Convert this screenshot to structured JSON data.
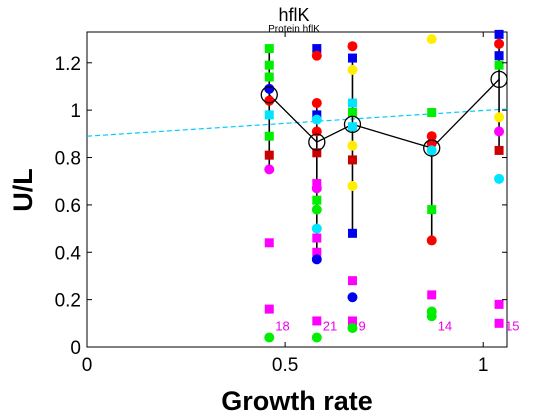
{
  "chart_data": {
    "type": "scatter",
    "title": "hflK",
    "subtitle": "Protein hflK",
    "xlabel": "Growth rate",
    "ylabel": "U/L",
    "xlim": [
      0,
      1.06
    ],
    "ylim": [
      0,
      1.33
    ],
    "xticks": [
      0,
      0.5,
      1
    ],
    "xtick_labels": [
      "0",
      "0.5",
      "1"
    ],
    "yticks": [
      0,
      0.2,
      0.4,
      0.6,
      0.8,
      1,
      1.2
    ],
    "ytick_labels": [
      "0",
      "0.2",
      "0.4",
      "0.6",
      "0.8",
      "1",
      "1.2"
    ],
    "grid": false,
    "colors": {
      "red": "#ff0000",
      "green": "#00ee00",
      "blue": "#0000ee",
      "cyan": "#00e5ff",
      "magenta": "#ff00ff",
      "yellow": "#ffee00",
      "darkred": "#cc0000",
      "fit": "#00ccff",
      "count": "#ee00ee"
    },
    "fit_line": {
      "x": [
        0,
        1.06
      ],
      "y": [
        0.89,
        1.005
      ]
    },
    "mean_series": [
      {
        "x": 0.46,
        "y": 1.065,
        "low": 0.75,
        "high": 1.26,
        "count": "18"
      },
      {
        "x": 0.58,
        "y": 0.865,
        "low": 0.38,
        "high": 1.05,
        "count": "21"
      },
      {
        "x": 0.67,
        "y": 0.94,
        "low": 0.48,
        "high": 1.23,
        "count": "9"
      },
      {
        "x": 0.87,
        "y": 0.84,
        "low": 0.45,
        "high": 0.89,
        "count": "14"
      },
      {
        "x": 1.04,
        "y": 1.13,
        "low": 0.83,
        "high": 1.29,
        "count": "15"
      }
    ],
    "points": [
      {
        "x": 0.46,
        "y": 1.26,
        "shape": "square",
        "color": "green"
      },
      {
        "x": 0.46,
        "y": 1.19,
        "shape": "square",
        "color": "green"
      },
      {
        "x": 0.46,
        "y": 1.14,
        "shape": "square",
        "color": "green"
      },
      {
        "x": 0.46,
        "y": 1.09,
        "shape": "circle",
        "color": "blue"
      },
      {
        "x": 0.46,
        "y": 1.04,
        "shape": "circle",
        "color": "red"
      },
      {
        "x": 0.46,
        "y": 0.98,
        "shape": "square",
        "color": "cyan"
      },
      {
        "x": 0.46,
        "y": 0.89,
        "shape": "square",
        "color": "green"
      },
      {
        "x": 0.46,
        "y": 0.81,
        "shape": "square",
        "color": "darkred"
      },
      {
        "x": 0.46,
        "y": 0.75,
        "shape": "circle",
        "color": "magenta"
      },
      {
        "x": 0.46,
        "y": 0.44,
        "shape": "square",
        "color": "magenta"
      },
      {
        "x": 0.46,
        "y": 0.16,
        "shape": "square",
        "color": "magenta"
      },
      {
        "x": 0.46,
        "y": 0.04,
        "shape": "circle",
        "color": "green"
      },
      {
        "x": 0.58,
        "y": 1.26,
        "shape": "square",
        "color": "blue"
      },
      {
        "x": 0.58,
        "y": 1.23,
        "shape": "circle",
        "color": "red"
      },
      {
        "x": 0.58,
        "y": 1.03,
        "shape": "circle",
        "color": "red"
      },
      {
        "x": 0.58,
        "y": 0.98,
        "shape": "square",
        "color": "blue"
      },
      {
        "x": 0.58,
        "y": 0.96,
        "shape": "circle",
        "color": "cyan"
      },
      {
        "x": 0.58,
        "y": 0.91,
        "shape": "circle",
        "color": "red"
      },
      {
        "x": 0.58,
        "y": 0.82,
        "shape": "square",
        "color": "darkred"
      },
      {
        "x": 0.58,
        "y": 0.69,
        "shape": "square",
        "color": "magenta"
      },
      {
        "x": 0.58,
        "y": 0.67,
        "shape": "circle",
        "color": "magenta"
      },
      {
        "x": 0.58,
        "y": 0.62,
        "shape": "square",
        "color": "green"
      },
      {
        "x": 0.58,
        "y": 0.58,
        "shape": "circle",
        "color": "green"
      },
      {
        "x": 0.58,
        "y": 0.5,
        "shape": "circle",
        "color": "cyan"
      },
      {
        "x": 0.58,
        "y": 0.46,
        "shape": "square",
        "color": "magenta"
      },
      {
        "x": 0.58,
        "y": 0.4,
        "shape": "square",
        "color": "magenta"
      },
      {
        "x": 0.58,
        "y": 0.37,
        "shape": "circle",
        "color": "blue"
      },
      {
        "x": 0.58,
        "y": 0.11,
        "shape": "square",
        "color": "magenta"
      },
      {
        "x": 0.58,
        "y": 0.04,
        "shape": "circle",
        "color": "green"
      },
      {
        "x": 0.67,
        "y": 1.27,
        "shape": "circle",
        "color": "red"
      },
      {
        "x": 0.67,
        "y": 1.22,
        "shape": "square",
        "color": "blue"
      },
      {
        "x": 0.67,
        "y": 1.17,
        "shape": "circle",
        "color": "yellow"
      },
      {
        "x": 0.67,
        "y": 1.03,
        "shape": "square",
        "color": "cyan"
      },
      {
        "x": 0.67,
        "y": 0.99,
        "shape": "square",
        "color": "green"
      },
      {
        "x": 0.67,
        "y": 0.93,
        "shape": "square",
        "color": "cyan"
      },
      {
        "x": 0.67,
        "y": 0.85,
        "shape": "circle",
        "color": "yellow"
      },
      {
        "x": 0.67,
        "y": 0.79,
        "shape": "square",
        "color": "darkred"
      },
      {
        "x": 0.67,
        "y": 0.68,
        "shape": "circle",
        "color": "yellow"
      },
      {
        "x": 0.67,
        "y": 0.48,
        "shape": "square",
        "color": "blue"
      },
      {
        "x": 0.67,
        "y": 0.28,
        "shape": "square",
        "color": "magenta"
      },
      {
        "x": 0.67,
        "y": 0.21,
        "shape": "circle",
        "color": "blue"
      },
      {
        "x": 0.67,
        "y": 0.11,
        "shape": "square",
        "color": "magenta"
      },
      {
        "x": 0.67,
        "y": 0.08,
        "shape": "circle",
        "color": "green"
      },
      {
        "x": 0.87,
        "y": 1.3,
        "shape": "circle",
        "color": "yellow"
      },
      {
        "x": 0.87,
        "y": 0.99,
        "shape": "square",
        "color": "green"
      },
      {
        "x": 0.87,
        "y": 0.89,
        "shape": "circle",
        "color": "red"
      },
      {
        "x": 0.87,
        "y": 0.86,
        "shape": "circle",
        "color": "red"
      },
      {
        "x": 0.87,
        "y": 0.83,
        "shape": "circle",
        "color": "cyan"
      },
      {
        "x": 0.87,
        "y": 0.58,
        "shape": "square",
        "color": "green"
      },
      {
        "x": 0.87,
        "y": 0.45,
        "shape": "circle",
        "color": "red"
      },
      {
        "x": 0.87,
        "y": 0.22,
        "shape": "square",
        "color": "magenta"
      },
      {
        "x": 0.87,
        "y": 0.15,
        "shape": "circle",
        "color": "green"
      },
      {
        "x": 0.87,
        "y": 0.13,
        "shape": "circle",
        "color": "green"
      },
      {
        "x": 1.04,
        "y": 1.32,
        "shape": "square",
        "color": "blue"
      },
      {
        "x": 1.04,
        "y": 1.28,
        "shape": "circle",
        "color": "red"
      },
      {
        "x": 1.04,
        "y": 1.23,
        "shape": "square",
        "color": "blue"
      },
      {
        "x": 1.04,
        "y": 1.19,
        "shape": "square",
        "color": "green"
      },
      {
        "x": 1.04,
        "y": 0.97,
        "shape": "circle",
        "color": "yellow"
      },
      {
        "x": 1.04,
        "y": 0.91,
        "shape": "circle",
        "color": "magenta"
      },
      {
        "x": 1.04,
        "y": 0.83,
        "shape": "square",
        "color": "darkred"
      },
      {
        "x": 1.04,
        "y": 0.71,
        "shape": "circle",
        "color": "cyan"
      },
      {
        "x": 1.04,
        "y": 0.18,
        "shape": "square",
        "color": "magenta"
      },
      {
        "x": 1.04,
        "y": 0.1,
        "shape": "square",
        "color": "magenta"
      }
    ]
  }
}
